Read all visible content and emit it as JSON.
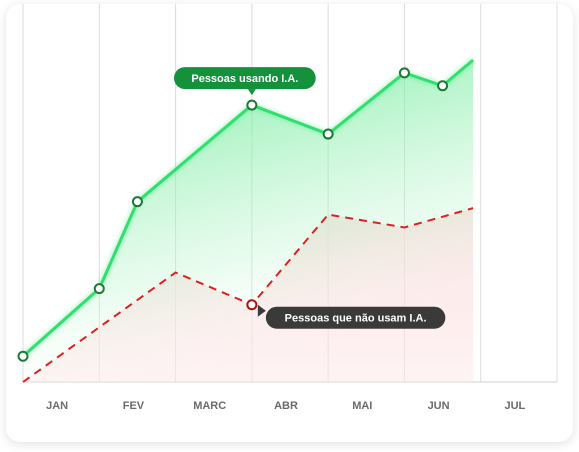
{
  "chart_data": {
    "type": "area",
    "categories": [
      "JAN",
      "FEV",
      "MARC",
      "ABR",
      "MAI",
      "JUN",
      "JUL"
    ],
    "ylim": [
      0,
      100
    ],
    "grid": true,
    "series": [
      {
        "name": "Pessoas usando I.A.",
        "style": "solid",
        "color": "#2fe06e",
        "marker_color": "#1a7a33",
        "x": [
          0.0,
          1.0,
          1.5,
          3.0,
          4.0,
          5.0,
          5.5,
          5.9
        ],
        "values": [
          8,
          29,
          56,
          86,
          77,
          96,
          92,
          100
        ],
        "markers": [
          0,
          1,
          2,
          3,
          4,
          5,
          6
        ]
      },
      {
        "name": "Pessoas que não usam I.A.",
        "style": "dashed",
        "color": "#e02020",
        "marker_color": "#b01010",
        "x": [
          0.0,
          2.0,
          3.0,
          4.0,
          5.0,
          5.9
        ],
        "values": [
          0,
          34,
          24,
          52,
          48,
          54
        ],
        "markers": [
          2
        ]
      }
    ],
    "annotations": [
      {
        "series": 0,
        "point": 3,
        "text": "Pessoas usando I.A.",
        "color": "#15913c",
        "placement": "above"
      },
      {
        "series": 1,
        "point": 2,
        "text": "Pessoas que não usam I.A.",
        "color": "#3a3a3a",
        "placement": "right"
      }
    ]
  }
}
